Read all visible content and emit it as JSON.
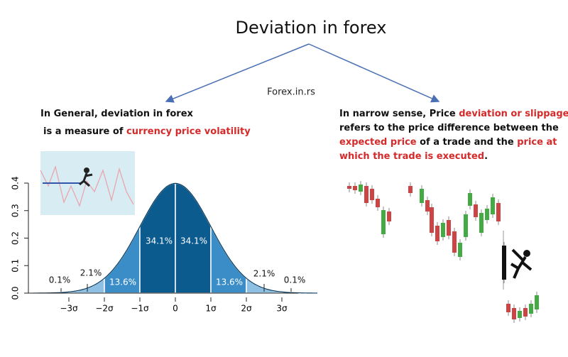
{
  "header": {
    "title": "Deviation in forex",
    "source": "Forex.in.rs"
  },
  "left": {
    "lines": [
      [
        {
          "text": "In General, deviation in forex"
        }
      ],
      [
        {
          "text": "is a measure of "
        },
        {
          "text": "currency price volatility",
          "highlight": true
        }
      ]
    ]
  },
  "right": {
    "lines": [
      [
        {
          "text": "In narrow sense, Price "
        },
        {
          "text": "deviation or slippage",
          "highlight": true
        }
      ],
      [
        {
          "text": "refers to the price difference between the"
        }
      ],
      [
        {
          "text": "expected price",
          "highlight": true
        },
        {
          "text": " of a trade and the "
        },
        {
          "text": "price at",
          "highlight": true
        }
      ],
      [
        {
          "text": "which the trade is executed",
          "highlight": true
        },
        {
          "text": "."
        }
      ]
    ]
  },
  "distribution": {
    "xlim": [
      -4,
      4
    ],
    "ylim": [
      0,
      0.4
    ],
    "xticks": [
      {
        "value": -3,
        "label": "−3σ"
      },
      {
        "value": -2,
        "label": "−2σ"
      },
      {
        "value": -1,
        "label": "−1σ"
      },
      0,
      {
        "value": 1,
        "label": "1σ"
      },
      {
        "value": 2,
        "label": "2σ"
      },
      {
        "value": 3,
        "label": "3σ"
      }
    ],
    "yticks": [
      {
        "value": 0,
        "label": "0.0"
      },
      0.1,
      0.2,
      0.3,
      0.4
    ],
    "shares": [
      {
        "value": 0.1,
        "label": "0.1%"
      },
      {
        "value": 2.1,
        "label": "2.1%"
      },
      {
        "value": 13.6,
        "label": "13.6%"
      },
      {
        "value": 34.1,
        "label": "34.1%"
      },
      {
        "value": 34.1,
        "label": "34.1%"
      },
      {
        "value": 13.6,
        "label": "13.6%"
      },
      {
        "value": 2.1,
        "label": "2.1%"
      },
      {
        "value": 0.1,
        "label": "0.1%"
      }
    ],
    "colors": [
      "#cfe3f2",
      "#8dc0e3",
      "#3a8dc6",
      "#0c5b8f",
      "#0c5b8f",
      "#3a8dc6",
      "#8dc0e3",
      "#cfe3f2"
    ]
  }
}
